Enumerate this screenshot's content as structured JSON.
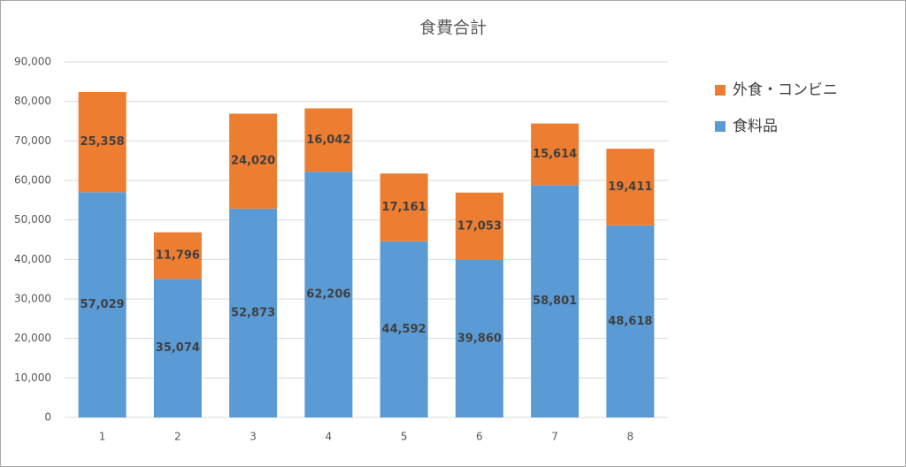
{
  "chart_data": {
    "type": "stacked_bar",
    "title": "食費合計",
    "categories": [
      "1",
      "2",
      "3",
      "4",
      "5",
      "6",
      "7",
      "8"
    ],
    "series": [
      {
        "name": "食料品",
        "color": "#5b9bd5",
        "values": [
          57029,
          35074,
          52873,
          62206,
          44592,
          39860,
          58801,
          48618
        ],
        "value_labels": [
          "57,029",
          "35,074",
          "52,873",
          "62,206",
          "44,592",
          "39,860",
          "58,801",
          "48,618"
        ]
      },
      {
        "name": "外食・コンビニ",
        "color": "#ed7d31",
        "values": [
          25358,
          11796,
          24020,
          16042,
          17161,
          17053,
          15614,
          19411
        ],
        "value_labels": [
          "25,358",
          "11,796",
          "24,020",
          "16,042",
          "17,161",
          "17,053",
          "15,614",
          "19,411"
        ]
      }
    ],
    "ylim": [
      0,
      90000
    ],
    "yticks": [
      0,
      {
        "value": 10000,
        "label": "10,000"
      },
      {
        "value": 20000,
        "label": "20,000"
      },
      {
        "value": 30000,
        "label": "30,000"
      },
      {
        "value": 40000,
        "label": "40,000"
      },
      {
        "value": 50000,
        "label": "50,000"
      },
      {
        "value": 60000,
        "label": "60,000"
      },
      {
        "value": 70000,
        "label": "70,000"
      },
      {
        "value": 80000,
        "label": "80,000"
      },
      {
        "value": 90000,
        "label": "90,000"
      }
    ],
    "grid": true,
    "legend": "right"
  }
}
